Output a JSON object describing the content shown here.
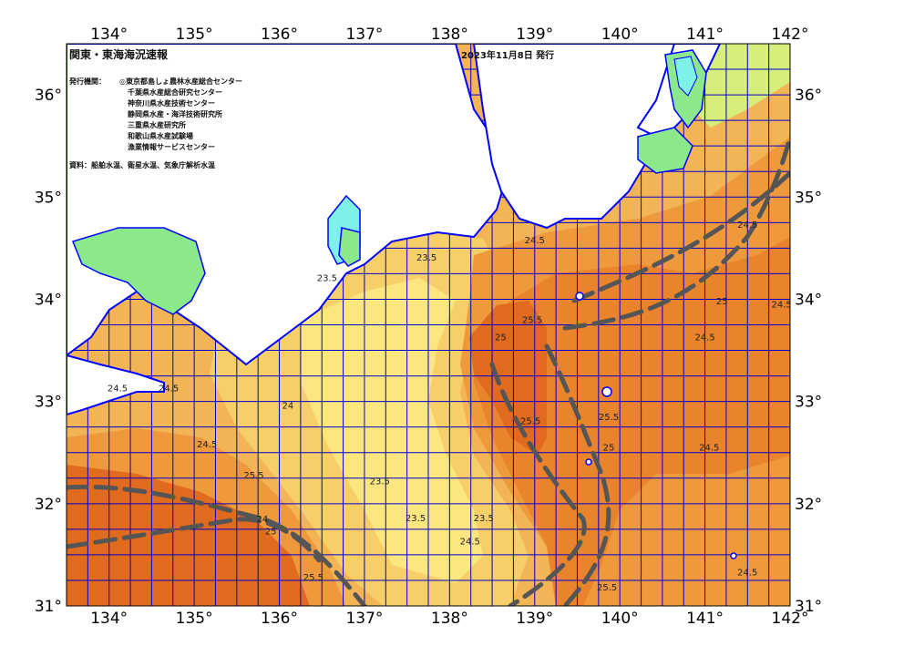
{
  "header": {
    "title": "関東・東海海況速報",
    "date": "2023年11月8日 発行"
  },
  "issuers": {
    "label": "発行機関：",
    "items": [
      "◎東京都島しょ農林水産総合センター",
      "千葉県水産総合研究センター",
      "神奈川県水産技術センター",
      "静岡県水産・海洋技術研究所",
      "三重県水産研究所",
      "和歌山県水産試験場",
      "漁業情報サービスセンター"
    ]
  },
  "source": "資料：船舶水温、衛星水温、気象庁解析水温",
  "axes": {
    "lon_ticks": [
      "134°",
      "135°",
      "136°",
      "137°",
      "138°",
      "139°",
      "140°",
      "141°",
      "142°"
    ],
    "lat_ticks": [
      "36°",
      "35°",
      "34°",
      "33°",
      "32°",
      "31°"
    ]
  },
  "contour_labels": [
    {
      "text": "23.5",
      "lon": 137.73,
      "lat": 34.38
    },
    {
      "text": "23.5",
      "lon": 136.56,
      "lat": 34.18
    },
    {
      "text": "24",
      "lon": 136.1,
      "lat": 32.93
    },
    {
      "text": "24",
      "lon": 135.8,
      "lat": 31.82
    },
    {
      "text": "23.5",
      "lon": 137.18,
      "lat": 32.19
    },
    {
      "text": "23.5",
      "lon": 137.6,
      "lat": 31.83
    },
    {
      "text": "23.5",
      "lon": 138.4,
      "lat": 31.83
    },
    {
      "text": "24.5",
      "lon": 139.0,
      "lat": 34.55
    },
    {
      "text": "25.5",
      "lon": 138.97,
      "lat": 33.77
    },
    {
      "text": "25",
      "lon": 138.6,
      "lat": 33.6
    },
    {
      "text": "25.5",
      "lon": 138.95,
      "lat": 32.78
    },
    {
      "text": "25.5",
      "lon": 139.87,
      "lat": 32.82
    },
    {
      "text": "25",
      "lon": 139.87,
      "lat": 32.52
    },
    {
      "text": "24.5",
      "lon": 141.05,
      "lat": 32.52
    },
    {
      "text": "24.5",
      "lon": 141.0,
      "lat": 33.6
    },
    {
      "text": "24.5",
      "lon": 141.9,
      "lat": 33.92
    },
    {
      "text": "25",
      "lon": 141.2,
      "lat": 33.95
    },
    {
      "text": "24.5",
      "lon": 134.7,
      "lat": 33.1
    },
    {
      "text": "24.5",
      "lon": 134.1,
      "lat": 33.1
    },
    {
      "text": "24.5",
      "lon": 135.15,
      "lat": 32.55
    },
    {
      "text": "25.5",
      "lon": 135.7,
      "lat": 32.25
    },
    {
      "text": "25",
      "lon": 135.9,
      "lat": 31.7
    },
    {
      "text": "25.5",
      "lon": 136.4,
      "lat": 31.25
    },
    {
      "text": "24.5",
      "lon": 138.24,
      "lat": 31.6
    },
    {
      "text": "25.5",
      "lon": 139.85,
      "lat": 31.15
    },
    {
      "text": "24.5",
      "lon": 141.5,
      "lat": 31.3
    },
    {
      "text": "24.5",
      "lon": 141.5,
      "lat": 34.7
    }
  ],
  "colors": {
    "land": "#ffffff",
    "coast": "#0000ff",
    "grid": "#0000cc",
    "cool_cyan": "#7ff2e8",
    "cool_green": "#8be88b",
    "yellow_green": "#d8ee7a",
    "t23": "#fce680",
    "t23_5": "#f7cf68",
    "t24": "#f2b455",
    "t24_5": "#ee9a3c",
    "t25": "#e9832c",
    "t25_5": "#e06a1e",
    "kuroshio": "#555555"
  }
}
